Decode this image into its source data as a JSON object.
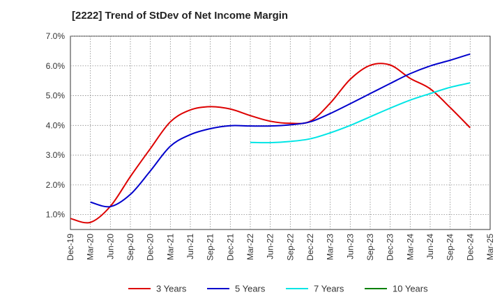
{
  "chart_data": {
    "type": "line",
    "title": "[2222]  Trend of StDev of Net Income Margin",
    "xlabel": "",
    "ylabel": "",
    "ylim": [
      0.5,
      7.0
    ],
    "yticks": [
      "1.0%",
      "2.0%",
      "3.0%",
      "4.0%",
      "5.0%",
      "6.0%",
      "7.0%"
    ],
    "ytick_values": [
      1.0,
      2.0,
      3.0,
      4.0,
      5.0,
      6.0,
      7.0
    ],
    "categories": [
      "Dec-19",
      "Mar-20",
      "Jun-20",
      "Sep-20",
      "Dec-20",
      "Mar-21",
      "Jun-21",
      "Sep-21",
      "Dec-21",
      "Mar-22",
      "Jun-22",
      "Sep-22",
      "Dec-22",
      "Mar-23",
      "Jun-23",
      "Sep-23",
      "Dec-23",
      "Mar-24",
      "Jun-24",
      "Sep-24",
      "Dec-24",
      "Mar-25"
    ],
    "grid": true,
    "legend_position": "bottom",
    "series": [
      {
        "name": "3 Years",
        "color": "#dd0000",
        "values": [
          0.87,
          0.74,
          1.28,
          2.28,
          3.22,
          4.12,
          4.52,
          4.63,
          4.55,
          4.33,
          4.14,
          4.07,
          4.14,
          4.75,
          5.55,
          6.02,
          6.03,
          5.58,
          5.23,
          4.6,
          3.92,
          null
        ]
      },
      {
        "name": "5 Years",
        "color": "#0000cc",
        "values": [
          null,
          1.42,
          1.27,
          1.68,
          2.47,
          3.3,
          3.69,
          3.89,
          3.99,
          3.98,
          3.98,
          4.02,
          4.12,
          4.4,
          4.73,
          5.07,
          5.41,
          5.74,
          6.0,
          6.19,
          6.4,
          null
        ]
      },
      {
        "name": "7 Years",
        "color": "#00e5e5",
        "values": [
          null,
          null,
          null,
          null,
          null,
          null,
          null,
          null,
          null,
          3.43,
          3.42,
          3.46,
          3.55,
          3.75,
          4.0,
          4.29,
          4.58,
          4.85,
          5.07,
          5.28,
          5.43,
          null
        ]
      },
      {
        "name": "10 Years",
        "color": "#008000",
        "values": [
          null,
          null,
          null,
          null,
          null,
          null,
          null,
          null,
          null,
          null,
          null,
          null,
          null,
          null,
          null,
          null,
          null,
          null,
          null,
          null,
          null,
          null
        ]
      }
    ]
  }
}
